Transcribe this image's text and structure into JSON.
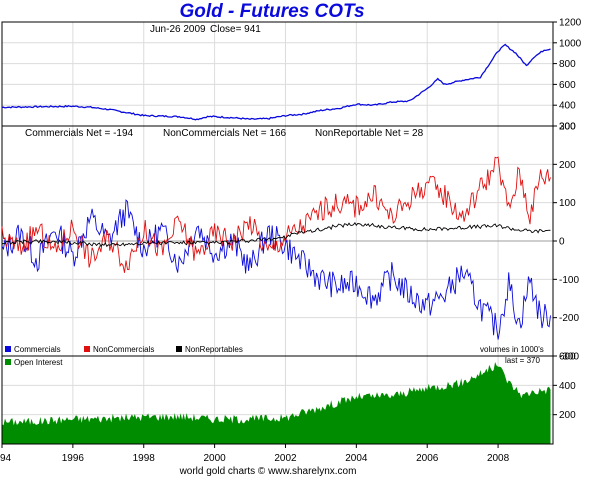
{
  "title": "Gold - Futures COTs",
  "footer": "world gold charts © www.sharelynx.com",
  "price_label": {
    "date": "Jun-26  2009",
    "close": "Close= 941"
  },
  "net_labels": {
    "commercials": "Commercials Net = -194",
    "noncommercials": "NonCommercials Net = 166",
    "nonreportable": "NonReportable Net = 28"
  },
  "legend": {
    "commercials": "Commercials",
    "noncommercials": "NonCommercials",
    "nonreportables": "NonReportables",
    "units": "volumes in 1000's",
    "open_interest": "Open Interest",
    "last": "last = 370"
  },
  "colors": {
    "price": "#0a0adc",
    "commercials": "#0a0adc",
    "noncommercials": "#e01010",
    "nonreportables": "#000000",
    "open_interest": "#008c00",
    "title": "#0a0adc"
  },
  "chart_data": [
    {
      "type": "line",
      "title": "Gold - Futures COTs",
      "ylim": [
        200,
        1200
      ],
      "yticks": [
        "200",
        "400",
        "600",
        "800",
        "1000",
        "1200"
      ],
      "grid": true,
      "series": [
        {
          "x": [
            1994.0,
            1995.0,
            1996.0,
            1996.5,
            1997.0,
            1997.5,
            1998.0,
            1998.5,
            1999.0,
            1999.5,
            1999.8,
            2000.0,
            2000.5,
            2001.0,
            2001.5,
            2002.0,
            2002.5,
            2003.0,
            2003.5,
            2004.0,
            2004.5,
            2005.0,
            2005.5,
            2006.0,
            2006.3,
            2006.5,
            2007.0,
            2007.5,
            2008.0,
            2008.2,
            2008.5,
            2008.8,
            2009.0,
            2009.3,
            2009.48
          ],
          "values": [
            380,
            385,
            390,
            380,
            360,
            330,
            300,
            295,
            290,
            265,
            290,
            290,
            280,
            265,
            270,
            300,
            315,
            350,
            370,
            410,
            400,
            430,
            440,
            560,
            650,
            600,
            640,
            670,
            920,
            980,
            900,
            780,
            860,
            930,
            941
          ]
        }
      ]
    },
    {
      "type": "line",
      "ylim": [
        -300,
        300
      ],
      "yticks": [
        "-300",
        "-200",
        "-100",
        "0",
        "100",
        "200",
        "300"
      ],
      "grid": true,
      "series": [
        {
          "name": "Commercials",
          "x": [
            1994.0,
            1994.5,
            1995.0,
            1995.5,
            1996.0,
            1996.5,
            1997.0,
            1997.5,
            1998.0,
            1998.5,
            1999.0,
            1999.5,
            2000.0,
            2000.5,
            2001.0,
            2001.5,
            2002.0,
            2002.5,
            2003.0,
            2003.5,
            2004.0,
            2004.5,
            2005.0,
            2005.5,
            2006.0,
            2006.5,
            2007.0,
            2007.5,
            2008.0,
            2008.3,
            2008.6,
            2008.9,
            2009.2,
            2009.48
          ],
          "values": [
            -30,
            20,
            -50,
            30,
            -40,
            60,
            0,
            80,
            -20,
            30,
            -60,
            40,
            -30,
            0,
            -70,
            20,
            -10,
            -60,
            -100,
            -120,
            -110,
            -150,
            -90,
            -140,
            -170,
            -140,
            -80,
            -170,
            -230,
            -110,
            -220,
            -100,
            -200,
            -194
          ]
        },
        {
          "name": "NonCommercials",
          "x": [
            1994.0,
            1994.5,
            1995.0,
            1995.5,
            1996.0,
            1996.5,
            1997.0,
            1997.5,
            1998.0,
            1998.5,
            1999.0,
            1999.5,
            2000.0,
            2000.5,
            2001.0,
            2001.5,
            2002.0,
            2002.5,
            2003.0,
            2003.5,
            2004.0,
            2004.5,
            2005.0,
            2005.5,
            2006.0,
            2006.5,
            2007.0,
            2007.5,
            2008.0,
            2008.3,
            2008.6,
            2008.9,
            2009.2,
            2009.48
          ],
          "values": [
            10,
            -20,
            30,
            -30,
            40,
            -50,
            10,
            -60,
            30,
            -30,
            50,
            -40,
            20,
            0,
            50,
            -30,
            10,
            40,
            80,
            100,
            90,
            120,
            60,
            110,
            150,
            120,
            60,
            140,
            200,
            80,
            180,
            70,
            170,
            166
          ]
        },
        {
          "name": "NonReportables",
          "x": [
            1994.0,
            1995.0,
            1996.0,
            1997.0,
            1998.0,
            1999.0,
            2000.0,
            2001.0,
            2002.0,
            2002.5,
            2003.0,
            2003.5,
            2004.0,
            2005.0,
            2006.0,
            2007.0,
            2008.0,
            2008.5,
            2009.0,
            2009.48
          ],
          "values": [
            -5,
            0,
            -5,
            -10,
            -5,
            -5,
            -5,
            0,
            10,
            25,
            30,
            40,
            45,
            35,
            30,
            35,
            40,
            30,
            25,
            28
          ]
        }
      ]
    },
    {
      "type": "area",
      "ylim": [
        0,
        600
      ],
      "yticks": [
        "200",
        "400",
        "600"
      ],
      "grid": true,
      "x_categories": [
        "94",
        "1996",
        "1998",
        "2000",
        "2002",
        "2004",
        "2006",
        "2008"
      ],
      "series": [
        {
          "name": "Open Interest",
          "x": [
            1994.0,
            1995.0,
            1996.0,
            1997.0,
            1998.0,
            1999.0,
            2000.0,
            2001.0,
            2002.0,
            2003.0,
            2004.0,
            2005.0,
            2006.0,
            2007.0,
            2007.5,
            2008.0,
            2008.3,
            2008.7,
            2009.0,
            2009.48
          ],
          "values": [
            150,
            155,
            170,
            175,
            185,
            190,
            170,
            170,
            180,
            250,
            320,
            330,
            380,
            420,
            480,
            540,
            420,
            330,
            360,
            370
          ]
        }
      ]
    }
  ]
}
